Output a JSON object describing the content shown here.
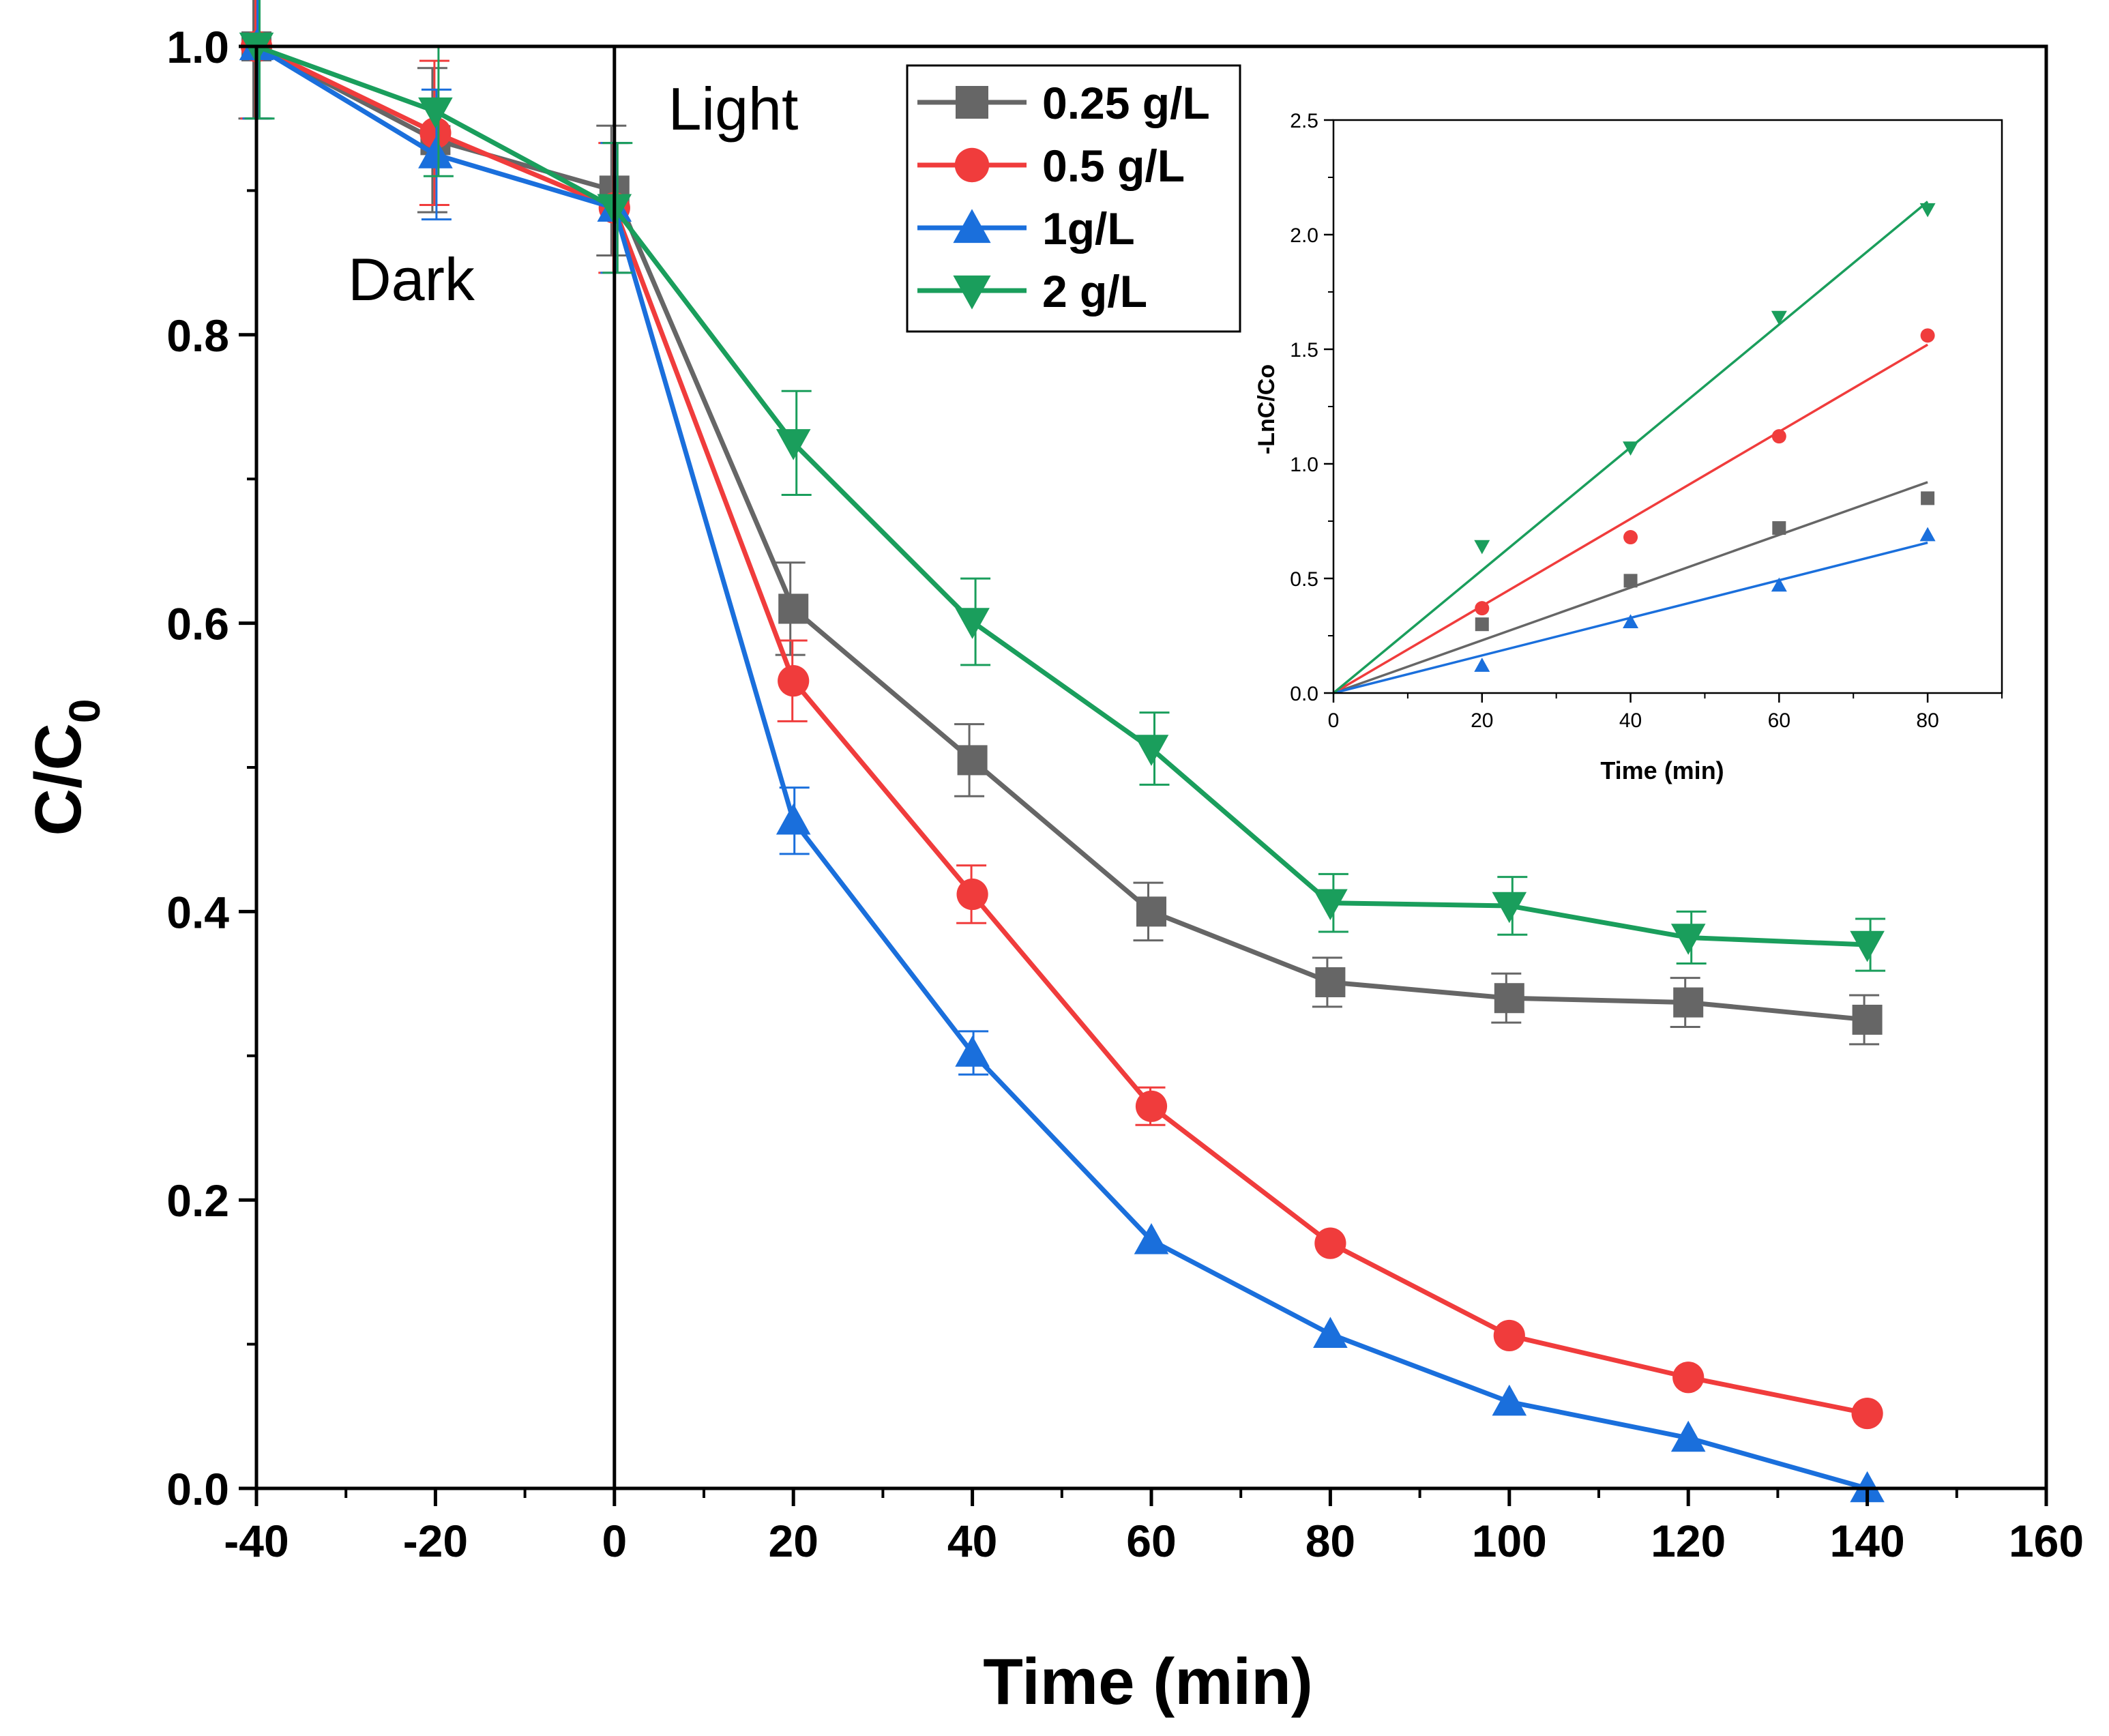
{
  "chart_data": [
    {
      "type": "line",
      "title": "",
      "xlabel": "Time (min)",
      "ylabel_main": "C/C",
      "ylabel_sub": "0",
      "xlim": [
        -40,
        160
      ],
      "ylim": [
        0,
        1.0
      ],
      "x_ticks": [
        -40,
        -20,
        0,
        20,
        40,
        60,
        80,
        100,
        120,
        140,
        160
      ],
      "x_tick_labels": [
        "-40",
        "-20",
        "0",
        "20",
        "40",
        "60",
        "80",
        "100",
        "120",
        "140",
        "160"
      ],
      "y_ticks": [
        0,
        0.2,
        0.4,
        0.6,
        0.8,
        1.0
      ],
      "y_tick_labels": [
        "0.0",
        "0.2",
        "0.4",
        "0.6",
        "0.8",
        "1.0"
      ],
      "annotations": {
        "dark": "Dark",
        "light": "Light"
      },
      "legend_position": "top-center",
      "x": [
        -40,
        -20,
        0,
        20,
        40,
        60,
        80,
        100,
        120,
        140
      ],
      "series": [
        {
          "name": "0.25 g/L",
          "color": "#666666",
          "marker": "square",
          "values": [
            1.0,
            0.935,
            0.9,
            0.61,
            0.505,
            0.4,
            0.351,
            0.34,
            0.337,
            0.325
          ],
          "errors": [
            0.05,
            0.05,
            0.045,
            0.032,
            0.025,
            0.02,
            0.017,
            0.017,
            0.017,
            0.017
          ]
        },
        {
          "name": "0.5 g/L",
          "color": "#f03c3c",
          "marker": "circle",
          "values": [
            1.0,
            0.94,
            0.888,
            0.56,
            0.412,
            0.265,
            0.17,
            0.106,
            0.077,
            0.052
          ],
          "errors": [
            0.05,
            0.05,
            0.045,
            0.028,
            0.02,
            0.013,
            0.0,
            0.0,
            0.0,
            0.0
          ]
        },
        {
          "name": "1g/L",
          "color": "#1a6fdc",
          "marker": "triangle-up",
          "values": [
            1.0,
            0.925,
            0.888,
            0.463,
            0.302,
            0.172,
            0.107,
            0.06,
            0.035,
            0.0
          ],
          "errors": [
            0.05,
            0.045,
            0.045,
            0.023,
            0.015,
            0.0,
            0.0,
            0.0,
            0.0,
            0.0
          ]
        },
        {
          "name": "2 g/L",
          "color": "#1a9e5c",
          "marker": "triangle-down",
          "values": [
            1.0,
            0.955,
            0.888,
            0.725,
            0.601,
            0.513,
            0.406,
            0.404,
            0.382,
            0.377
          ],
          "errors": [
            0.05,
            0.045,
            0.045,
            0.036,
            0.03,
            0.025,
            0.02,
            0.02,
            0.018,
            0.018
          ]
        }
      ]
    },
    {
      "type": "scatter",
      "title": "",
      "xlabel": "Time (min)",
      "ylabel": "-LnC/Co",
      "xlim": [
        0,
        90
      ],
      "ylim": [
        0,
        2.5
      ],
      "x_ticks": [
        0,
        20,
        40,
        60,
        80
      ],
      "x_tick_labels": [
        "0",
        "20",
        "40",
        "60",
        "80"
      ],
      "y_ticks": [
        0,
        0.5,
        1.0,
        1.5,
        2.0,
        2.5
      ],
      "y_tick_labels": [
        "0.0",
        "0.5",
        "1.0",
        "1.5",
        "2.0",
        "2.5"
      ],
      "x": [
        0,
        20,
        40,
        60,
        80
      ],
      "series": [
        {
          "name": "0.25 g/L",
          "color": "#666666",
          "marker": "square",
          "values": [
            0,
            0.3,
            0.49,
            0.72,
            0.85
          ],
          "fit_slope": 0.0115
        },
        {
          "name": "0.5 g/L",
          "color": "#f03c3c",
          "marker": "circle",
          "values": [
            0,
            0.37,
            0.68,
            1.12,
            1.56
          ],
          "fit_slope": 0.019
        },
        {
          "name": "1g/L",
          "color": "#1a6fdc",
          "marker": "triangle-up",
          "values": [
            0,
            0.12,
            0.31,
            0.47,
            0.69
          ],
          "fit_slope": 0.0082
        },
        {
          "name": "2 g/L",
          "color": "#1a9e5c",
          "marker": "triangle-down",
          "values": [
            0,
            0.64,
            1.07,
            1.64,
            2.11
          ],
          "fit_slope": 0.0268
        }
      ]
    }
  ]
}
